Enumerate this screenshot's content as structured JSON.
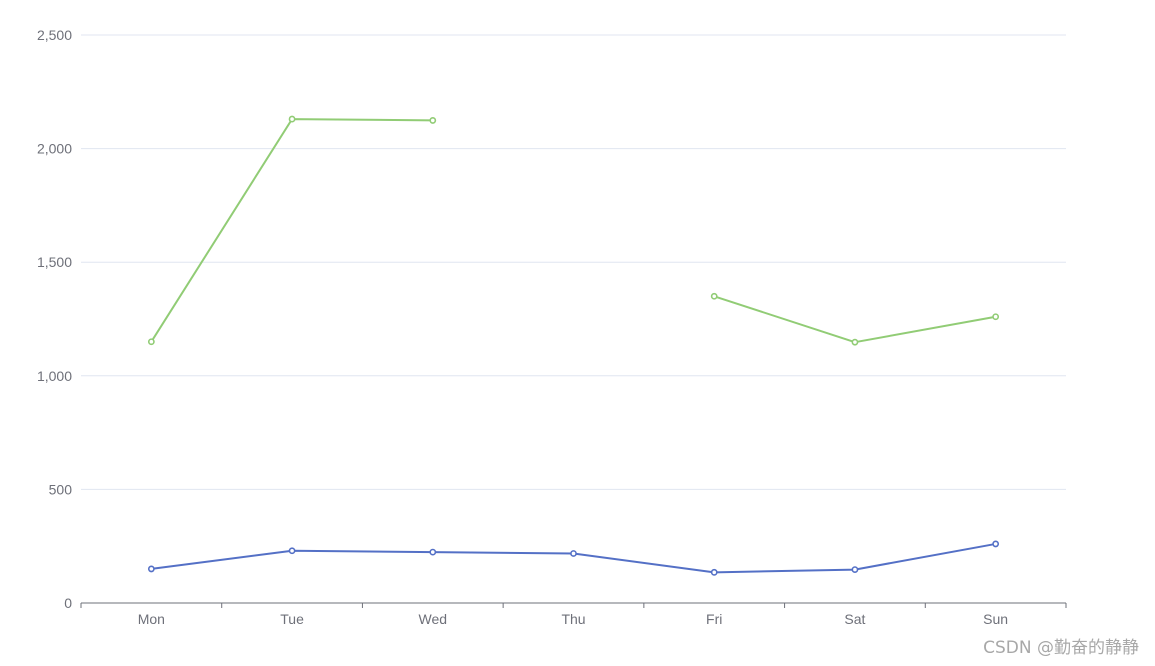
{
  "chart_data": {
    "type": "line",
    "categories": [
      "Mon",
      "Tue",
      "Wed",
      "Thu",
      "Fri",
      "Sat",
      "Sun"
    ],
    "ylim": [
      0,
      2500
    ],
    "yticks": [
      "0",
      "500",
      "1,000",
      "1,500",
      "2,000",
      "2,500"
    ],
    "grid": true,
    "series": [
      {
        "color": "#5470c6",
        "values": [
          150,
          230,
          224,
          218,
          135,
          147,
          260
        ]
      },
      {
        "color": "#91cc75",
        "values": [
          1150,
          2130,
          2124,
          null,
          1350,
          1148,
          1260
        ]
      }
    ]
  },
  "watermark": "CSDN @勤奋的静静",
  "colors": {
    "grid": "#e0e6f1",
    "axis": "#6e7079",
    "label": "#6e7079"
  }
}
